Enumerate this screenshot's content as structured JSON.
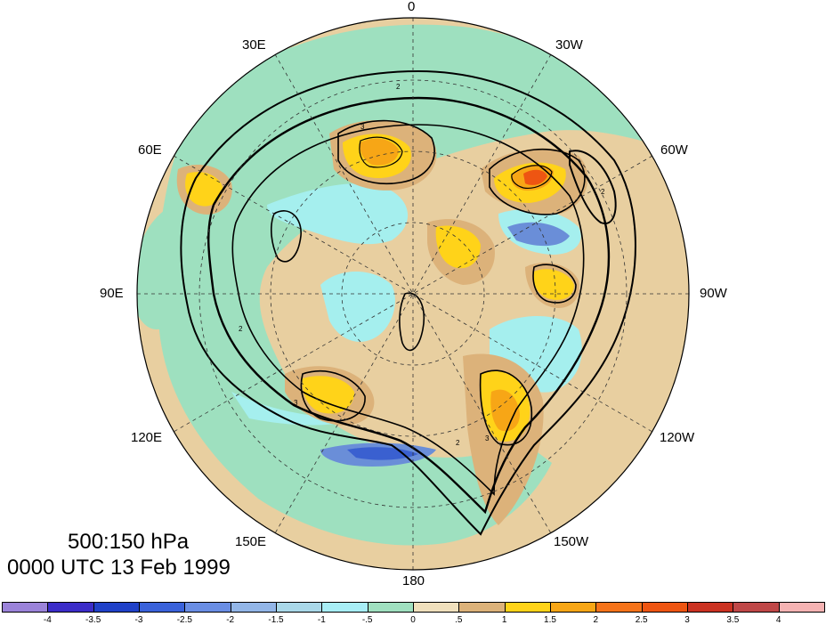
{
  "map": {
    "title_level": "500:150 hPa",
    "title_time": "0000 UTC 13 Feb 1999",
    "longitude_labels": {
      "top": "0",
      "upper_left": "30E",
      "upper_right": "30W",
      "left_upper": "60E",
      "right_upper": "60W",
      "left": "90E",
      "right": "90W",
      "left_lower": "120E",
      "right_lower": "120W",
      "lower_left": "150E",
      "lower_right": "150W",
      "bottom": "180"
    },
    "projection": "north-polar-stereographic",
    "contour_labels": [
      "2",
      "2",
      "2",
      "3",
      "3",
      "3",
      "2"
    ],
    "colors": {
      "background_land": "#e8cfa0",
      "ocean_green": "#9ee0bf",
      "neutral": "#f0e0bd",
      "positive_1": "#dcb27a",
      "positive_2": "#ffd319",
      "positive_3": "#f7a616",
      "positive_4": "#ee5512",
      "negative_1": "#a5efee",
      "negative_2": "#b6d7e7",
      "negative_3": "#6a8ed8",
      "negative_4": "#3a60d0"
    }
  },
  "colorbar": {
    "tick_labels": [
      "-4",
      "-3.5",
      "-3",
      "-2.5",
      "-2",
      "-1.5",
      "-1",
      "-.5",
      "0",
      ".5",
      "1",
      "1.5",
      "2",
      "2.5",
      "3",
      "3.5",
      "4"
    ],
    "colors": [
      "#9b83d9",
      "#3b2cc8",
      "#2041c8",
      "#3a62da",
      "#6a8ee4",
      "#93b6e8",
      "#aad8e9",
      "#a8eef6",
      "#a0e0c0",
      "#f0e0bd",
      "#dcb27a",
      "#ffd319",
      "#f7a616",
      "#f5731a",
      "#ee5512",
      "#cb3222",
      "#c04848",
      "#f5b3b3"
    ]
  }
}
